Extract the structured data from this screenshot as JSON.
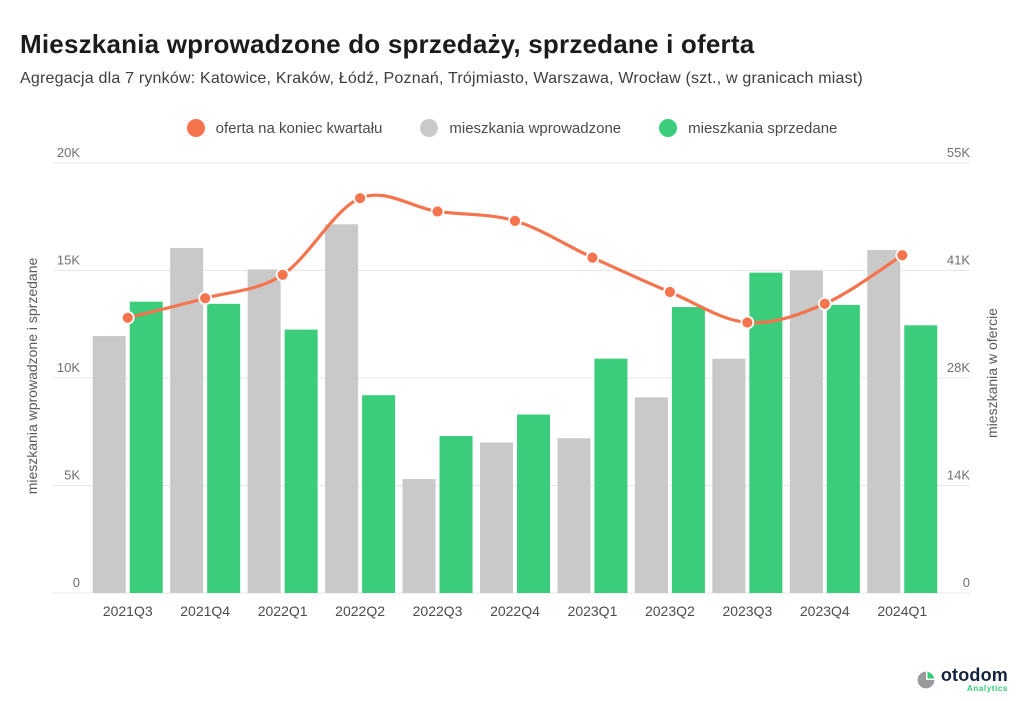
{
  "header": {
    "title": "Mieszkania wprowadzone do sprzedaży, sprzedane i oferta",
    "subtitle": "Agregacja dla 7 rynków: Katowice, Kraków, Łódź, Poznań, Trójmiasto, Warszawa, Wrocław (szt., w granicach miast)"
  },
  "legend": {
    "items": [
      {
        "label": "oferta na koniec kwartału",
        "color": "#F6744D"
      },
      {
        "label": "mieszkania wprowadzone",
        "color": "#C9C9C9"
      },
      {
        "label": "mieszkania sprzedane",
        "color": "#3CCD7C"
      }
    ]
  },
  "chart_data": {
    "type": "bar+line",
    "categories": [
      "2021Q3",
      "2021Q4",
      "2022Q1",
      "2022Q2",
      "2022Q3",
      "2022Q4",
      "2023Q1",
      "2023Q2",
      "2023Q3",
      "2023Q4",
      "2024Q1"
    ],
    "series": [
      {
        "name": "mieszkania wprowadzone",
        "type": "bar",
        "axis": "left",
        "color": "#C9C9C9",
        "values": [
          11950,
          16050,
          15050,
          17150,
          5300,
          7000,
          7200,
          9100,
          10900,
          15000,
          15950
        ]
      },
      {
        "name": "mieszkania sprzedane",
        "type": "bar",
        "axis": "left",
        "color": "#3CCD7C",
        "values": [
          13550,
          13450,
          12250,
          9200,
          7300,
          8300,
          10900,
          13300,
          14900,
          13400,
          12450
        ]
      },
      {
        "name": "oferta na koniec kwartału",
        "type": "line",
        "axis": "right",
        "color": "#F6744D",
        "values": [
          35200,
          37700,
          40700,
          50500,
          48800,
          47600,
          42900,
          38500,
          34600,
          37000,
          43200
        ]
      }
    ],
    "left_axis": {
      "title": "mieszkania wprowadzone i sprzedane",
      "max": 20000,
      "ticks": [
        0,
        5000,
        10000,
        15000,
        20000
      ],
      "tick_labels": [
        "0",
        "5K",
        "10K",
        "15K",
        "20K"
      ]
    },
    "right_axis": {
      "title": "mieszkania w ofercie",
      "max": 55000,
      "ticks": [
        0,
        13750,
        27500,
        41250,
        55000
      ],
      "tick_labels": [
        "0",
        "14K",
        "28K",
        "41K",
        "55K"
      ]
    },
    "grid": true,
    "legend_position": "top"
  },
  "footer": {
    "logo_text": "otodom",
    "logo_subtext": "Analytics"
  }
}
